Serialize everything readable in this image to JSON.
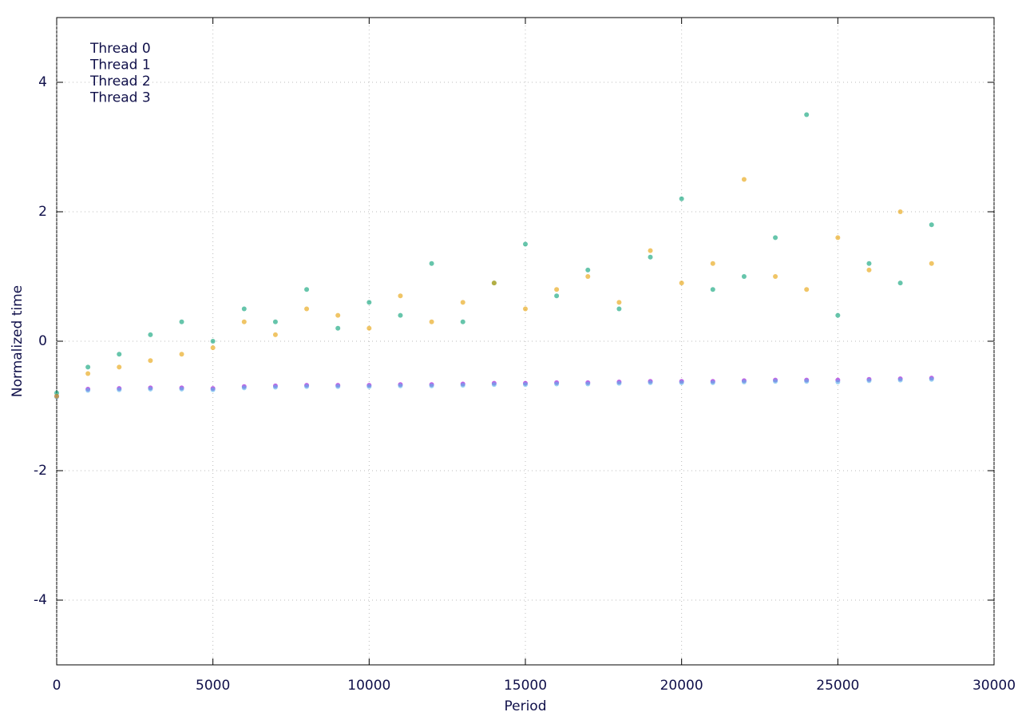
{
  "chart_data": {
    "type": "scatter",
    "x_label": "Period",
    "y_label": "Normalized time",
    "xlim": [
      0,
      30000
    ],
    "ylim": [
      -5,
      5
    ],
    "xticks": [
      0,
      5000,
      10000,
      15000,
      20000,
      25000,
      30000
    ],
    "yticks": [
      -4,
      -2,
      0,
      2,
      4
    ],
    "grid": true,
    "legend": "top-left",
    "x": [
      0,
      1000,
      2000,
      3000,
      4000,
      5000,
      6000,
      7000,
      8000,
      9000,
      10000,
      11000,
      12000,
      13000,
      14000,
      15000,
      16000,
      17000,
      18000,
      19000,
      20000,
      21000,
      22000,
      23000,
      24000,
      25000,
      26000,
      27000,
      28000
    ],
    "series": [
      {
        "name": "Thread 0",
        "color": "#9400d3",
        "values": [
          -0.85,
          -0.74,
          -0.73,
          -0.72,
          -0.72,
          -0.73,
          -0.7,
          -0.69,
          -0.68,
          -0.68,
          -0.68,
          -0.67,
          -0.67,
          -0.66,
          -0.65,
          -0.65,
          -0.64,
          -0.64,
          -0.63,
          -0.62,
          -0.62,
          -0.62,
          -0.61,
          -0.6,
          -0.6,
          -0.6,
          -0.59,
          -0.58,
          -0.57
        ]
      },
      {
        "name": "Thread 1",
        "color": "#009e73",
        "values": [
          -0.8,
          -0.4,
          -0.2,
          0.1,
          0.3,
          0.0,
          0.5,
          0.3,
          0.8,
          0.2,
          0.6,
          0.4,
          1.2,
          0.3,
          0.9,
          1.5,
          0.7,
          1.1,
          0.5,
          1.3,
          2.2,
          0.8,
          1.0,
          1.6,
          3.5,
          0.4,
          1.2,
          0.9,
          1.8
        ]
      },
      {
        "name": "Thread 2",
        "color": "#56b4e9",
        "values": [
          -0.86,
          -0.76,
          -0.75,
          -0.74,
          -0.74,
          -0.75,
          -0.72,
          -0.71,
          -0.7,
          -0.7,
          -0.7,
          -0.69,
          -0.69,
          -0.68,
          -0.67,
          -0.67,
          -0.66,
          -0.66,
          -0.65,
          -0.64,
          -0.64,
          -0.64,
          -0.63,
          -0.62,
          -0.62,
          -0.63,
          -0.61,
          -0.6,
          -0.59
        ]
      },
      {
        "name": "Thread 3",
        "color": "#e69f00",
        "values": [
          -0.85,
          -0.5,
          -0.4,
          -0.3,
          -0.2,
          -0.1,
          0.3,
          0.1,
          0.5,
          0.4,
          0.2,
          0.7,
          0.3,
          0.6,
          0.9,
          0.5,
          0.8,
          1.0,
          0.6,
          1.4,
          0.9,
          1.2,
          2.5,
          1.0,
          0.8,
          1.6,
          1.1,
          2.0,
          1.2
        ]
      }
    ]
  }
}
